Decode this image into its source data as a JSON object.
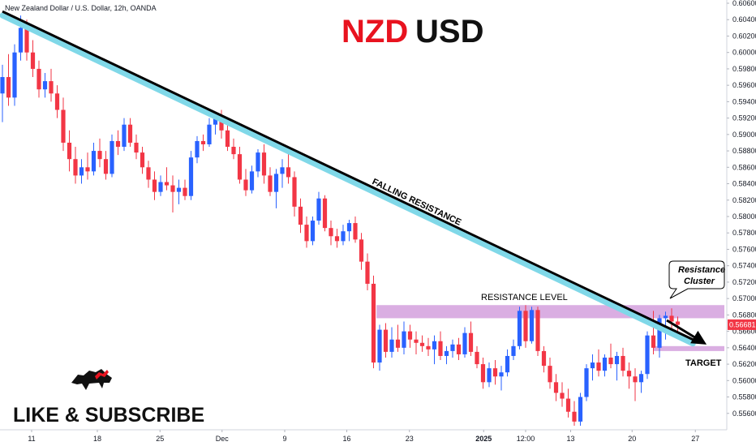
{
  "header": {
    "symbol_description": "New Zealand Dollar / U.S. Dollar, 12h, OANDA"
  },
  "title": {
    "left": "NZD",
    "right": "USD",
    "left_color": "#e8131f",
    "right_color": "#111111"
  },
  "branding": {
    "cta": "LIKE & SUBSCRIBE",
    "logo_icon": "bull-icon",
    "accent": "#e8131f"
  },
  "colors": {
    "up": "#2962ff",
    "down": "#f23645",
    "resistance_band": "#ce93d8",
    "trendline_shadow": "#80d8e8",
    "price_tag": "#f23645"
  },
  "chart_data": {
    "type": "candlestick",
    "instrument": "NZDUSD",
    "timeframe": "12h",
    "x_ticks": [
      "11",
      "18",
      "25",
      "Dec",
      "9",
      "16",
      "23",
      "2025",
      "12:00",
      "13",
      "20",
      "27"
    ],
    "y_ticks": [
      "0.60600",
      "0.60400",
      "0.60200",
      "0.60000",
      "0.59800",
      "0.59600",
      "0.59400",
      "0.59200",
      "0.59000",
      "0.58800",
      "0.58600",
      "0.58400",
      "0.58200",
      "0.58000",
      "0.57800",
      "0.57600",
      "0.57400",
      "0.57200",
      "0.57000",
      "0.56800",
      "0.56600",
      "0.56400",
      "0.56200",
      "0.56000",
      "0.55800",
      "0.55600",
      "0.55400"
    ],
    "ylim": [
      0.554,
      0.606
    ],
    "last_price": "0.56681",
    "candles": [
      [
        0.595,
        0.5985,
        0.5915,
        0.597
      ],
      [
        0.597,
        0.5998,
        0.5935,
        0.5945
      ],
      [
        0.5945,
        0.601,
        0.5935,
        0.6
      ],
      [
        0.6,
        0.6045,
        0.599,
        0.603
      ],
      [
        0.603,
        0.604,
        0.599,
        0.6
      ],
      [
        0.6,
        0.6015,
        0.597,
        0.598
      ],
      [
        0.598,
        0.599,
        0.5945,
        0.5955
      ],
      [
        0.5955,
        0.5975,
        0.5945,
        0.5965
      ],
      [
        0.5965,
        0.598,
        0.594,
        0.595
      ],
      [
        0.595,
        0.596,
        0.592,
        0.593
      ],
      [
        0.593,
        0.5945,
        0.588,
        0.589
      ],
      [
        0.589,
        0.5905,
        0.5855,
        0.587
      ],
      [
        0.587,
        0.5885,
        0.584,
        0.585
      ],
      [
        0.585,
        0.587,
        0.584,
        0.586
      ],
      [
        0.586,
        0.5878,
        0.5845,
        0.5855
      ],
      [
        0.5855,
        0.589,
        0.585,
        0.588
      ],
      [
        0.588,
        0.5895,
        0.586,
        0.587
      ],
      [
        0.587,
        0.588,
        0.5845,
        0.5852
      ],
      [
        0.5852,
        0.59,
        0.5848,
        0.5892
      ],
      [
        0.5892,
        0.5905,
        0.5875,
        0.5885
      ],
      [
        0.5885,
        0.592,
        0.588,
        0.5912
      ],
      [
        0.5912,
        0.592,
        0.5885,
        0.589
      ],
      [
        0.589,
        0.59,
        0.587,
        0.5878
      ],
      [
        0.5878,
        0.5885,
        0.5852,
        0.586
      ],
      [
        0.586,
        0.5868,
        0.5835,
        0.5845
      ],
      [
        0.5845,
        0.5855,
        0.582,
        0.583
      ],
      [
        0.583,
        0.585,
        0.5825,
        0.5842
      ],
      [
        0.5842,
        0.586,
        0.5832,
        0.5838
      ],
      [
        0.5838,
        0.585,
        0.5805,
        0.583
      ],
      [
        0.583,
        0.5845,
        0.5815,
        0.5835
      ],
      [
        0.5835,
        0.5845,
        0.582,
        0.5825
      ],
      [
        0.5825,
        0.588,
        0.582,
        0.5872
      ],
      [
        0.5872,
        0.5898,
        0.5865,
        0.5892
      ],
      [
        0.5892,
        0.59,
        0.588,
        0.5888
      ],
      [
        0.5888,
        0.592,
        0.5885,
        0.5912
      ],
      [
        0.5912,
        0.5925,
        0.59,
        0.592
      ],
      [
        0.592,
        0.593,
        0.5895,
        0.5905
      ],
      [
        0.5905,
        0.5912,
        0.588,
        0.5885
      ],
      [
        0.5885,
        0.5895,
        0.587,
        0.5876
      ],
      [
        0.5876,
        0.5885,
        0.584,
        0.5845
      ],
      [
        0.5845,
        0.5858,
        0.5825,
        0.5832
      ],
      [
        0.5832,
        0.5862,
        0.5828,
        0.5855
      ],
      [
        0.5855,
        0.5882,
        0.5848,
        0.5878
      ],
      [
        0.5878,
        0.5888,
        0.584,
        0.585
      ],
      [
        0.585,
        0.586,
        0.5825,
        0.583
      ],
      [
        0.583,
        0.5858,
        0.581,
        0.5852
      ],
      [
        0.5852,
        0.587,
        0.5835,
        0.586
      ],
      [
        0.586,
        0.588,
        0.584,
        0.5848
      ],
      [
        0.5848,
        0.5855,
        0.58,
        0.5812
      ],
      [
        0.5812,
        0.5822,
        0.578,
        0.579
      ],
      [
        0.579,
        0.58,
        0.5762,
        0.577
      ],
      [
        0.577,
        0.58,
        0.5765,
        0.5795
      ],
      [
        0.5795,
        0.583,
        0.579,
        0.5822
      ],
      [
        0.5822,
        0.5826,
        0.5782,
        0.5786
      ],
      [
        0.5786,
        0.5795,
        0.5765,
        0.5776
      ],
      [
        0.5776,
        0.5785,
        0.5762,
        0.577
      ],
      [
        0.577,
        0.579,
        0.5765,
        0.5782
      ],
      [
        0.5782,
        0.5796,
        0.577,
        0.5792
      ],
      [
        0.5792,
        0.58,
        0.5768,
        0.5772
      ],
      [
        0.5772,
        0.578,
        0.5735,
        0.5745
      ],
      [
        0.5745,
        0.5755,
        0.571,
        0.5718
      ],
      [
        0.5718,
        0.5728,
        0.5615,
        0.5622
      ],
      [
        0.5622,
        0.5668,
        0.5612,
        0.5662
      ],
      [
        0.5662,
        0.567,
        0.5628,
        0.5635
      ],
      [
        0.5635,
        0.5665,
        0.5628,
        0.565
      ],
      [
        0.565,
        0.5668,
        0.5635,
        0.564
      ],
      [
        0.564,
        0.5672,
        0.5632,
        0.566
      ],
      [
        0.566,
        0.5668,
        0.564,
        0.565
      ],
      [
        0.565,
        0.566,
        0.5632,
        0.5646
      ],
      [
        0.5646,
        0.5655,
        0.5635,
        0.5642
      ],
      [
        0.5642,
        0.5652,
        0.563,
        0.5638
      ],
      [
        0.5638,
        0.5655,
        0.562,
        0.5648
      ],
      [
        0.5648,
        0.566,
        0.5625,
        0.563
      ],
      [
        0.563,
        0.5642,
        0.562,
        0.5636
      ],
      [
        0.5636,
        0.565,
        0.5628,
        0.5644
      ],
      [
        0.5644,
        0.5652,
        0.5625,
        0.5632
      ],
      [
        0.5632,
        0.5665,
        0.5628,
        0.5658
      ],
      [
        0.5658,
        0.5672,
        0.563,
        0.5635
      ],
      [
        0.5635,
        0.5642,
        0.5615,
        0.562
      ],
      [
        0.562,
        0.5628,
        0.559,
        0.5598
      ],
      [
        0.5598,
        0.5622,
        0.5592,
        0.5615
      ],
      [
        0.5615,
        0.5625,
        0.5595,
        0.5605
      ],
      [
        0.5605,
        0.5618,
        0.5588,
        0.561
      ],
      [
        0.561,
        0.5638,
        0.5605,
        0.563
      ],
      [
        0.563,
        0.565,
        0.5625,
        0.5642
      ],
      [
        0.5642,
        0.569,
        0.5638,
        0.5685
      ],
      [
        0.5685,
        0.5692,
        0.564,
        0.5648
      ],
      [
        0.5648,
        0.569,
        0.5645,
        0.5686
      ],
      [
        0.5686,
        0.569,
        0.563,
        0.5636
      ],
      [
        0.5636,
        0.5642,
        0.561,
        0.5618
      ],
      [
        0.5618,
        0.5628,
        0.559,
        0.5598
      ],
      [
        0.5598,
        0.5608,
        0.5575,
        0.5585
      ],
      [
        0.5585,
        0.5598,
        0.5568,
        0.5578
      ],
      [
        0.5578,
        0.559,
        0.5555,
        0.5562
      ],
      [
        0.5562,
        0.5575,
        0.5545,
        0.555
      ],
      [
        0.555,
        0.5585,
        0.5545,
        0.558
      ],
      [
        0.558,
        0.562,
        0.5575,
        0.5615
      ],
      [
        0.5615,
        0.5632,
        0.56,
        0.5622
      ],
      [
        0.5622,
        0.5638,
        0.5605,
        0.5612
      ],
      [
        0.5612,
        0.5632,
        0.5605,
        0.5628
      ],
      [
        0.5628,
        0.5645,
        0.5615,
        0.562
      ],
      [
        0.562,
        0.5635,
        0.56,
        0.563
      ],
      [
        0.563,
        0.564,
        0.5605,
        0.5612
      ],
      [
        0.5612,
        0.5622,
        0.559,
        0.5605
      ],
      [
        0.5605,
        0.5615,
        0.5575,
        0.5598
      ],
      [
        0.5598,
        0.5612,
        0.5585,
        0.5608
      ],
      [
        0.5608,
        0.566,
        0.5602,
        0.5655
      ],
      [
        0.5655,
        0.5685,
        0.5632,
        0.564
      ],
      [
        0.564,
        0.568,
        0.5628,
        0.5676
      ],
      [
        0.5676,
        0.5684,
        0.565,
        0.5679
      ],
      [
        0.5679,
        0.5688,
        0.566,
        0.5672
      ],
      [
        0.5672,
        0.5678,
        0.5655,
        0.5668
      ]
    ],
    "trendline": {
      "label": "FALLING RESISTANCE",
      "start": [
        0,
        0.605
      ],
      "end": [
        113.5,
        0.565
      ]
    },
    "resistance_zone": {
      "label": "RESISTANCE LEVEL",
      "low": 0.5676,
      "high": 0.5692,
      "from": 61.5
    },
    "target_zone": {
      "label": "TARGET",
      "low": 0.5636,
      "high": 0.5642,
      "from": 107
    },
    "callout": {
      "line1": "Resistance",
      "line2": "Cluster"
    }
  }
}
